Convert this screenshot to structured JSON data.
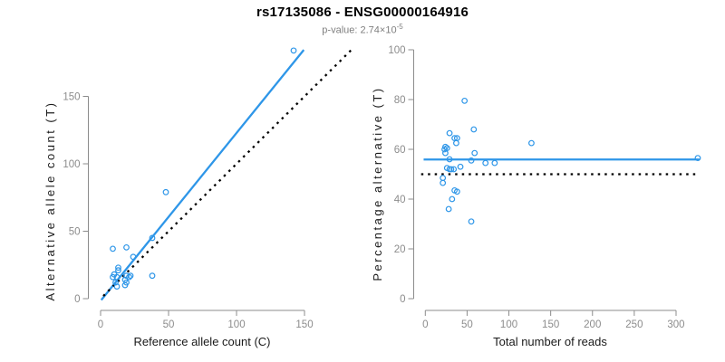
{
  "header": {
    "title": "rs17135086 - ENSG00000164916",
    "subtitle_prefix": "p-value: 2.74×10",
    "subtitle_exponent": "-5"
  },
  "colors": {
    "point_blue": "#2E96E8",
    "line_blue": "#2E96E8",
    "dotted_black": "#000000",
    "axis_line_gray": "#8c8c8c",
    "tick_label_gray": "#8c8c8c",
    "axis_title_dark": "#1a1a1a",
    "subtitle_gray": "#7f7f7f"
  },
  "chart_data": [
    {
      "type": "scatter",
      "panel": "left",
      "xlabel": "Reference allele count (C)",
      "ylabel": "Alternative allele count (T)",
      "xticks": [
        0,
        50,
        100,
        150
      ],
      "yticks": [
        0,
        50,
        100,
        150
      ],
      "xlim": [
        0,
        150
      ],
      "ylim": [
        0,
        150
      ],
      "grid": false,
      "legend": "none",
      "points": [
        [
          9,
          37
        ],
        [
          19,
          38
        ],
        [
          38,
          45
        ],
        [
          48,
          79
        ],
        [
          38,
          17
        ],
        [
          24,
          31
        ],
        [
          13,
          23
        ],
        [
          13,
          21
        ],
        [
          10,
          18
        ],
        [
          9,
          16
        ],
        [
          12,
          16
        ],
        [
          19,
          17
        ],
        [
          21,
          16
        ],
        [
          22,
          17
        ],
        [
          18,
          14
        ],
        [
          19,
          12
        ],
        [
          18,
          10
        ],
        [
          11,
          12
        ],
        [
          12,
          9
        ],
        [
          142,
          184
        ]
      ],
      "lines": [
        {
          "role": "regression-line",
          "style": "solid",
          "color": "#2E96E8",
          "x1": 0.5,
          "y1": -1,
          "x2": 149.5,
          "y2": 184.5
        },
        {
          "role": "identity-line",
          "style": "dotted",
          "color": "#000000",
          "x1": 2,
          "y1": 2,
          "x2": 184.5,
          "y2": 184.5
        }
      ]
    },
    {
      "type": "scatter",
      "panel": "right",
      "xlabel": "Total number of reads",
      "ylabel": "Percentage alternative (T)",
      "xticks": [
        0,
        50,
        100,
        150,
        200,
        250,
        300
      ],
      "yticks": [
        0,
        20,
        40,
        60,
        80,
        100
      ],
      "xlim": [
        0,
        300
      ],
      "ylim": [
        0,
        100
      ],
      "grid": false,
      "legend": "none",
      "points": [
        [
          47,
          79.5
        ],
        [
          58,
          68
        ],
        [
          29,
          66.5
        ],
        [
          35,
          64.5
        ],
        [
          38,
          64.5
        ],
        [
          37,
          62.5
        ],
        [
          24,
          61
        ],
        [
          26,
          60.5
        ],
        [
          23,
          60
        ],
        [
          24,
          58.5
        ],
        [
          59,
          58.5
        ],
        [
          127,
          62.5
        ],
        [
          55,
          55.5
        ],
        [
          72,
          54.5
        ],
        [
          83,
          54.5
        ],
        [
          29,
          56
        ],
        [
          26,
          52.5
        ],
        [
          29,
          52
        ],
        [
          31,
          52
        ],
        [
          34,
          52
        ],
        [
          42,
          53
        ],
        [
          21,
          48.5
        ],
        [
          21,
          46.5
        ],
        [
          35,
          43.5
        ],
        [
          38,
          43
        ],
        [
          32,
          40
        ],
        [
          28,
          36
        ],
        [
          55,
          31
        ],
        [
          326,
          56.5
        ]
      ],
      "lines": [
        {
          "role": "mean-line",
          "style": "solid",
          "color": "#2E96E8",
          "x1": -2,
          "y1": 55.9,
          "x2": 328,
          "y2": 55.9
        },
        {
          "role": "fifty-percent-line",
          "style": "dotted",
          "color": "#000000",
          "x1": -5,
          "y1": 50,
          "x2": 323,
          "y2": 50
        }
      ]
    }
  ]
}
